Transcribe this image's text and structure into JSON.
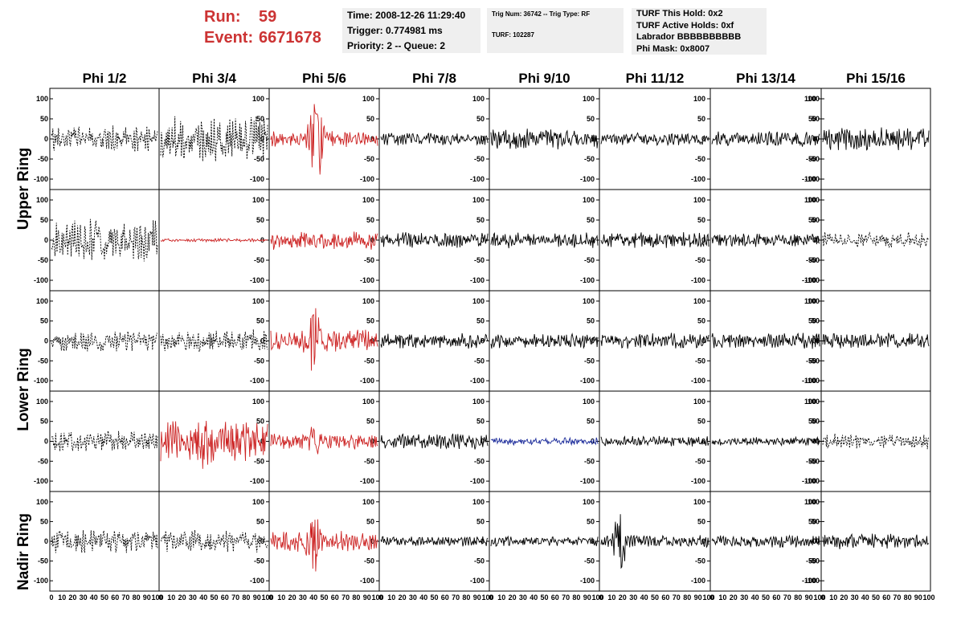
{
  "header": {
    "run_label": "Run:",
    "run_value": "59",
    "event_label": "Event:",
    "event_value": "6671678",
    "time": "Time: 2008-12-26 11:29:40",
    "trigger": "Trigger: 0.774981 ms",
    "priority": "Priority: 2 -- Queue: 2",
    "trig_info": "Trig Num: 36742 -- Trig Type: RF",
    "turf": "TURF: 102287",
    "turf_hold": "TURF This Hold: 0x2",
    "turf_active": "TURF Active Holds: 0xf",
    "labrador": "Labrador BBBBBBBBBB",
    "phi_mask": "Phi Mask: 0x8007"
  },
  "columns": [
    "Phi 1/2",
    "Phi 3/4",
    "Phi 5/6",
    "Phi 7/8",
    "Phi 9/10",
    "Phi 11/12",
    "Phi 13/14",
    "Phi 15/16"
  ],
  "rows": [
    {
      "label": "Upper Ring"
    },
    {
      "label": "Lower Ring"
    },
    {
      "label": "Nadir Ring"
    }
  ],
  "colors": {
    "trace_black": "#000000",
    "trace_red": "#cc2222",
    "trace_blue": "#1a2a9a",
    "panel_border": "#000000",
    "info_bg": "#efefef",
    "run_text": "#cc3333"
  },
  "chart_data": {
    "type": "line",
    "panel_rows": 5,
    "panel_cols": 8,
    "xlim": [
      0,
      100
    ],
    "ylim": [
      -120,
      120
    ],
    "y_ticks": [
      -100,
      -50,
      0,
      50,
      100
    ],
    "x_ticks": [
      "0",
      "10",
      "20",
      "30",
      "40",
      "50",
      "60",
      "70",
      "80",
      "90",
      "100"
    ],
    "panels": [
      {
        "row": 0,
        "col": 0,
        "style": "dashed",
        "color": "black",
        "amp": 25,
        "seed": 11,
        "ticks": "left"
      },
      {
        "row": 0,
        "col": 1,
        "style": "dashed",
        "color": "black",
        "amp": 45,
        "seed": 12,
        "ticks": "right"
      },
      {
        "row": 0,
        "col": 2,
        "style": "solid",
        "color": "red",
        "amp": 15,
        "seed": 13,
        "pulse": 42,
        "pulse_amp": 100,
        "ticks": "right"
      },
      {
        "row": 0,
        "col": 3,
        "style": "solid",
        "color": "black",
        "amp": 12,
        "seed": 14,
        "ticks": "right"
      },
      {
        "row": 0,
        "col": 4,
        "style": "solid",
        "color": "black",
        "amp": 20,
        "seed": 15,
        "ticks": "right"
      },
      {
        "row": 0,
        "col": 5,
        "style": "solid",
        "color": "black",
        "amp": 12,
        "seed": 16,
        "ticks": "right"
      },
      {
        "row": 0,
        "col": 6,
        "style": "solid",
        "color": "black",
        "amp": 15,
        "seed": 17,
        "ticks": "right"
      },
      {
        "row": 0,
        "col": 7,
        "style": "solid",
        "color": "black",
        "amp": 22,
        "seed": 18,
        "ticks": "left"
      },
      {
        "row": 1,
        "col": 0,
        "style": "dashed",
        "color": "black",
        "amp": 40,
        "seed": 21,
        "ticks": "left"
      },
      {
        "row": 1,
        "col": 1,
        "style": "solid",
        "color": "red",
        "amp": 3,
        "seed": 22,
        "ticks": "right"
      },
      {
        "row": 1,
        "col": 2,
        "style": "solid",
        "color": "red",
        "amp": 18,
        "seed": 23,
        "ticks": "right"
      },
      {
        "row": 1,
        "col": 3,
        "style": "solid",
        "color": "black",
        "amp": 15,
        "seed": 24,
        "ticks": "right"
      },
      {
        "row": 1,
        "col": 4,
        "style": "solid",
        "color": "black",
        "amp": 15,
        "seed": 25,
        "ticks": "right"
      },
      {
        "row": 1,
        "col": 5,
        "style": "solid",
        "color": "black",
        "amp": 15,
        "seed": 26,
        "ticks": "right"
      },
      {
        "row": 1,
        "col": 6,
        "style": "solid",
        "color": "black",
        "amp": 13,
        "seed": 27,
        "ticks": "right"
      },
      {
        "row": 1,
        "col": 7,
        "style": "dashed",
        "color": "black",
        "amp": 15,
        "seed": 28,
        "ticks": "left"
      },
      {
        "row": 2,
        "col": 0,
        "style": "dashed",
        "color": "black",
        "amp": 20,
        "seed": 31,
        "ticks": "left"
      },
      {
        "row": 2,
        "col": 1,
        "style": "dashed",
        "color": "black",
        "amp": 22,
        "seed": 32,
        "ticks": "right"
      },
      {
        "row": 2,
        "col": 2,
        "style": "solid",
        "color": "red",
        "amp": 22,
        "seed": 33,
        "pulse": 40,
        "pulse_amp": 55,
        "ticks": "right"
      },
      {
        "row": 2,
        "col": 3,
        "style": "solid",
        "color": "black",
        "amp": 15,
        "seed": 34,
        "ticks": "right"
      },
      {
        "row": 2,
        "col": 4,
        "style": "solid",
        "color": "black",
        "amp": 15,
        "seed": 35,
        "ticks": "right"
      },
      {
        "row": 2,
        "col": 5,
        "style": "solid",
        "color": "black",
        "amp": 15,
        "seed": 36,
        "ticks": "right"
      },
      {
        "row": 2,
        "col": 6,
        "style": "solid",
        "color": "black",
        "amp": 15,
        "seed": 37,
        "ticks": "right"
      },
      {
        "row": 2,
        "col": 7,
        "style": "solid",
        "color": "black",
        "amp": 15,
        "seed": 38,
        "ticks": "left"
      },
      {
        "row": 3,
        "col": 0,
        "style": "dashed",
        "color": "black",
        "amp": 20,
        "seed": 41,
        "ticks": "left"
      },
      {
        "row": 3,
        "col": 1,
        "style": "solid",
        "color": "red",
        "amp": 40,
        "seed": 42,
        "pulse": 40,
        "pulse_amp": 30,
        "ticks": "right"
      },
      {
        "row": 3,
        "col": 2,
        "style": "solid",
        "color": "red",
        "amp": 15,
        "seed": 43,
        "pulse": 40,
        "pulse_amp": 18,
        "ticks": "right"
      },
      {
        "row": 3,
        "col": 3,
        "style": "solid",
        "color": "black",
        "amp": 15,
        "seed": 44,
        "ticks": "right"
      },
      {
        "row": 3,
        "col": 4,
        "style": "solid",
        "color": "blue",
        "amp": 7,
        "seed": 45,
        "ticks": "right"
      },
      {
        "row": 3,
        "col": 5,
        "style": "solid",
        "color": "black",
        "amp": 10,
        "seed": 46,
        "ticks": "right"
      },
      {
        "row": 3,
        "col": 6,
        "style": "solid",
        "color": "black",
        "amp": 8,
        "seed": 47,
        "ticks": "right"
      },
      {
        "row": 3,
        "col": 7,
        "style": "dashed",
        "color": "black",
        "amp": 15,
        "seed": 48,
        "ticks": "left"
      },
      {
        "row": 4,
        "col": 0,
        "style": "dashed",
        "color": "black",
        "amp": 22,
        "seed": 51,
        "ticks": "left"
      },
      {
        "row": 4,
        "col": 1,
        "style": "dashed",
        "color": "black",
        "amp": 22,
        "seed": 52,
        "ticks": "right"
      },
      {
        "row": 4,
        "col": 2,
        "style": "solid",
        "color": "red",
        "amp": 20,
        "seed": 53,
        "pulse": 40,
        "pulse_amp": 70,
        "ticks": "right"
      },
      {
        "row": 4,
        "col": 3,
        "style": "solid",
        "color": "black",
        "amp": 10,
        "seed": 54,
        "ticks": "right"
      },
      {
        "row": 4,
        "col": 4,
        "style": "solid",
        "color": "black",
        "amp": 10,
        "seed": 55,
        "ticks": "right"
      },
      {
        "row": 4,
        "col": 5,
        "style": "solid",
        "color": "black",
        "amp": 12,
        "seed": 56,
        "pulse": 18,
        "pulse_amp": 60,
        "ticks": "right"
      },
      {
        "row": 4,
        "col": 6,
        "style": "solid",
        "color": "black",
        "amp": 12,
        "seed": 57,
        "ticks": "right"
      },
      {
        "row": 4,
        "col": 7,
        "style": "solid",
        "color": "black",
        "amp": 15,
        "seed": 58,
        "ticks": "left"
      }
    ]
  }
}
